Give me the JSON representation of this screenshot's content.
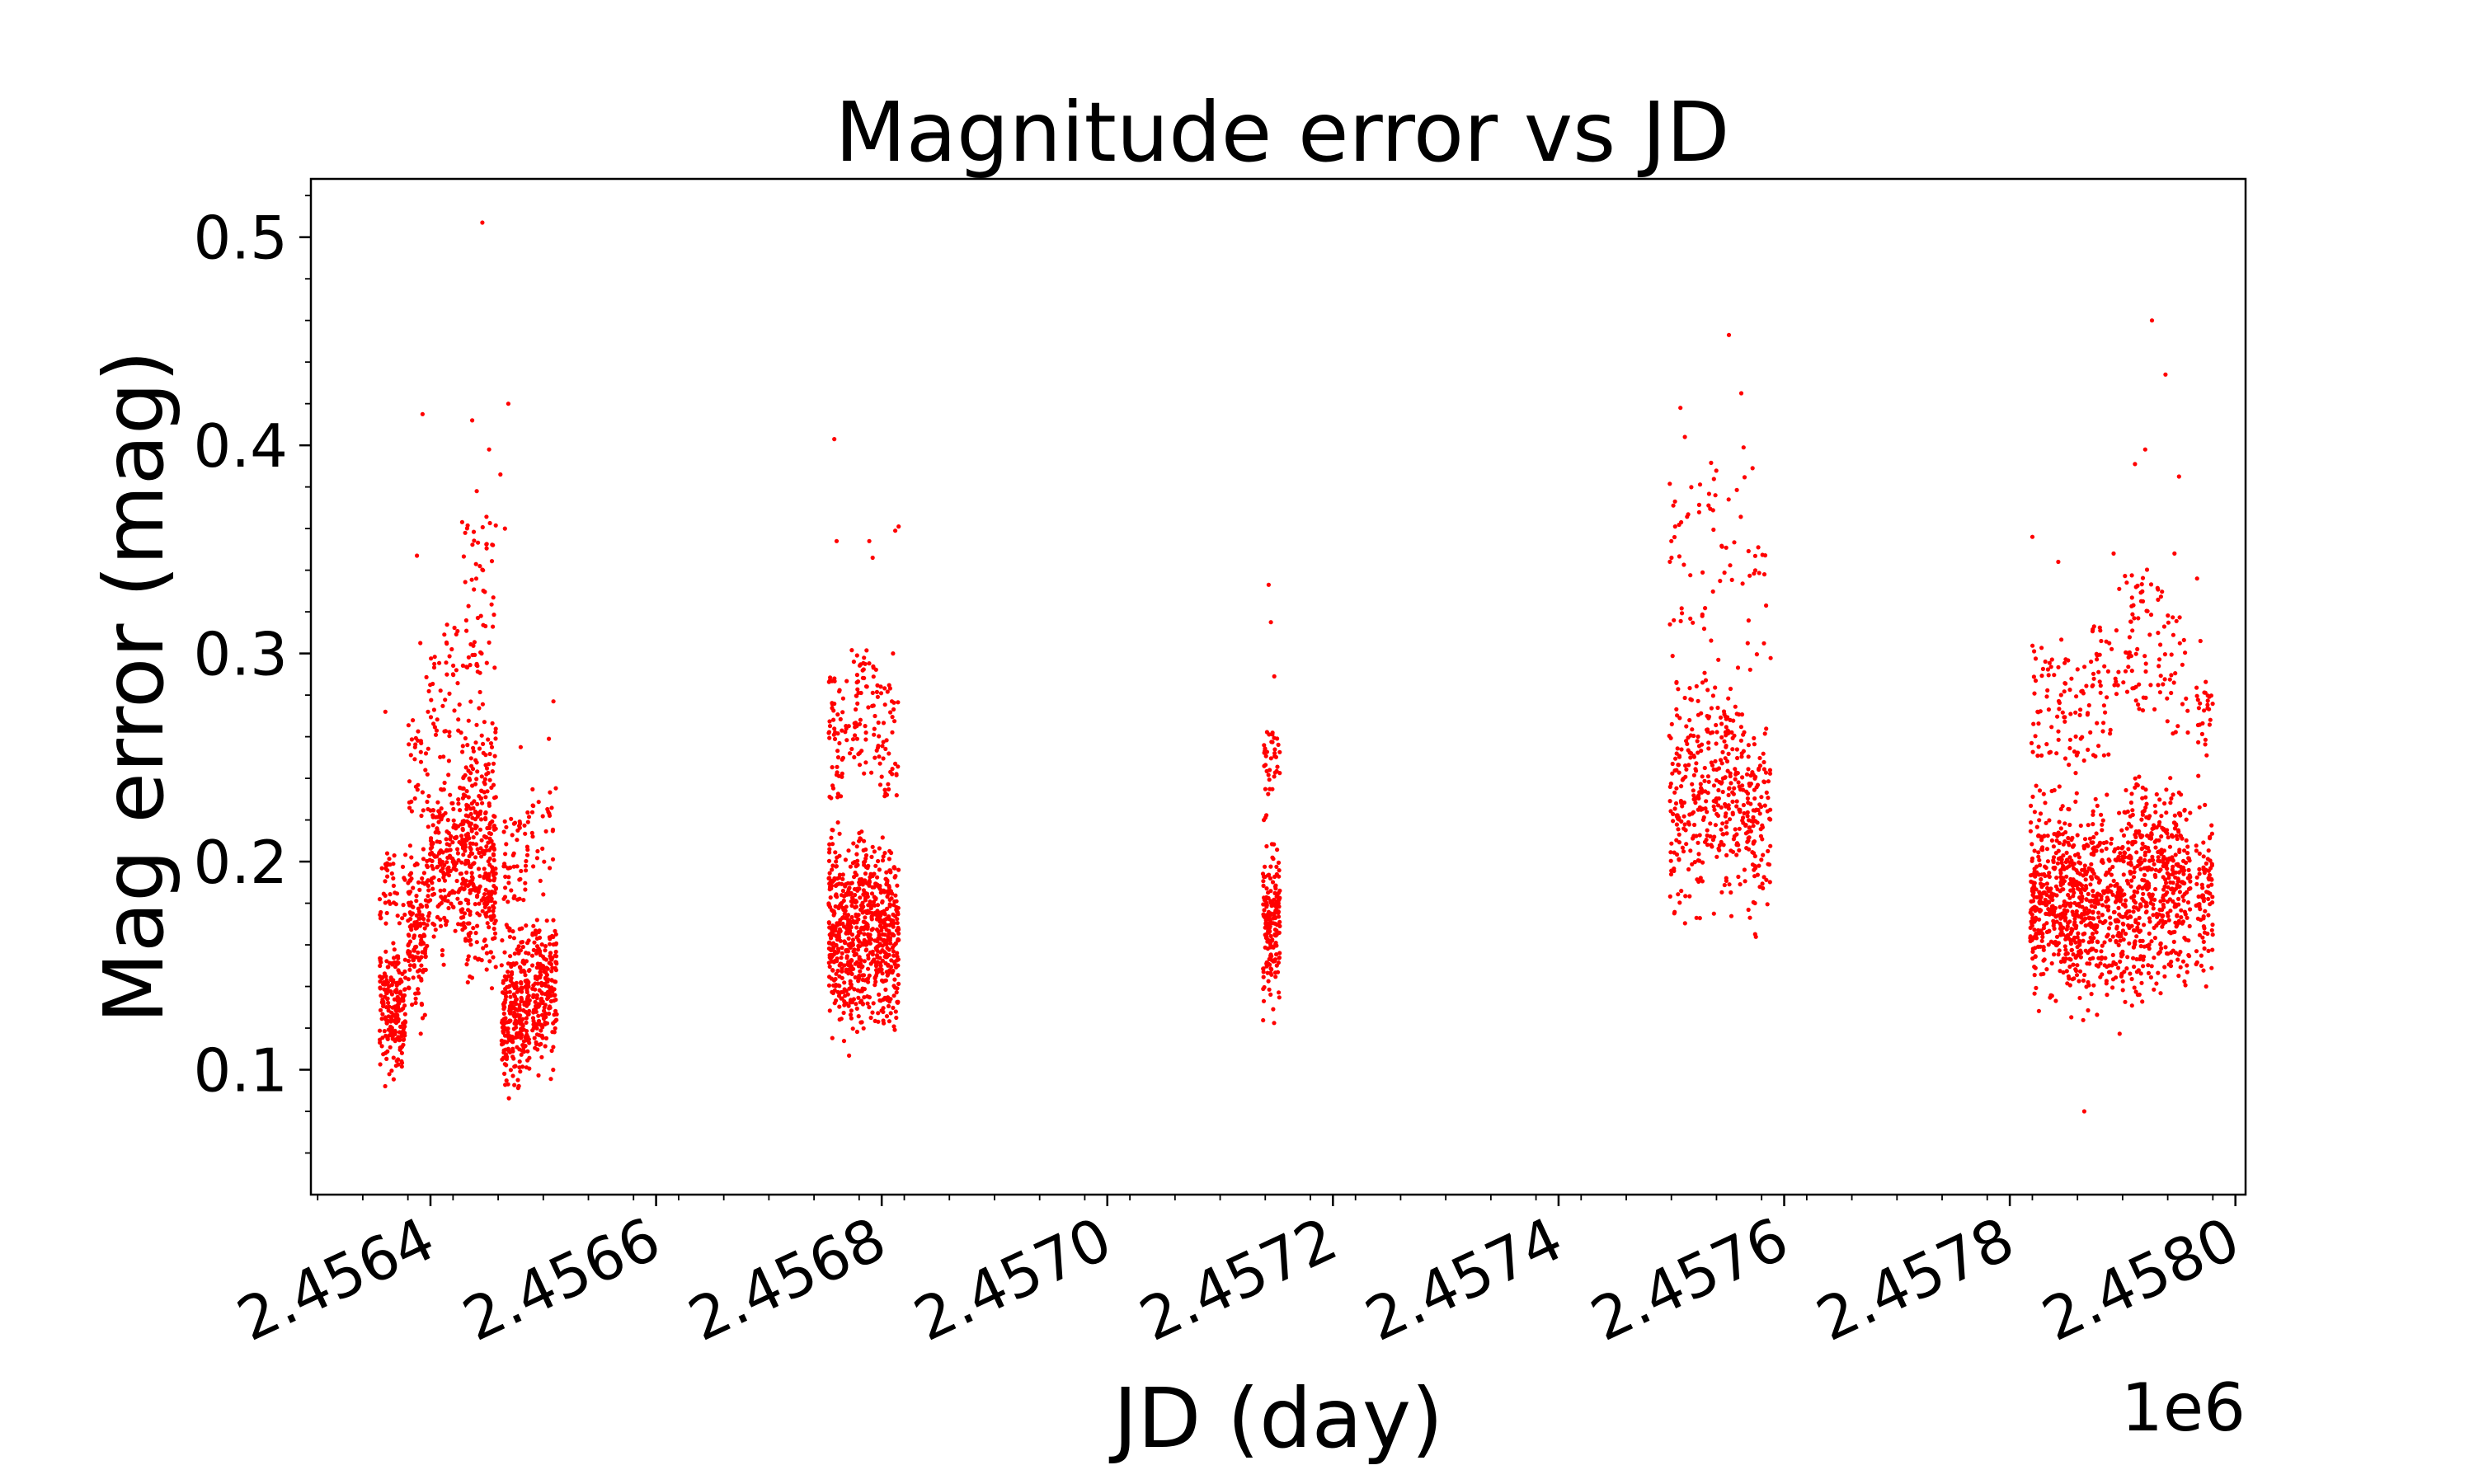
{
  "chart_data": {
    "type": "scatter",
    "title": "Magnitude error vs JD",
    "xlabel": "JD (day)",
    "ylabel": "Mag error (mag)",
    "x_offset_label": "1e6",
    "x_scale": 1000000,
    "xlim": [
      2456294,
      2458009
    ],
    "ylim": [
      0.04,
      0.528
    ],
    "x_ticks": [
      2456400,
      2456600,
      2456800,
      2457000,
      2457200,
      2457400,
      2457600,
      2457800,
      2458000
    ],
    "x_tick_labels": [
      "2.4564",
      "2.4566",
      "2.4568",
      "2.4570",
      "2.4572",
      "2.4574",
      "2.4576",
      "2.4578",
      "2.4580"
    ],
    "y_ticks": [
      0.1,
      0.2,
      0.3,
      0.4,
      0.5
    ],
    "y_tick_labels": [
      "0.1",
      "0.2",
      "0.3",
      "0.4",
      "0.5"
    ],
    "grid": false,
    "marker_color": "#ff0000",
    "series": [
      {
        "clusters": [
          {
            "x_range": [
              2456355,
              2456378
            ],
            "y_min": 0.07,
            "y_typical": [
              0.09,
              0.17
            ],
            "n": 260
          },
          {
            "x_range": [
              2456380,
              2456396
            ],
            "y_min": 0.08,
            "y_typical": [
              0.11,
              0.22
            ],
            "n": 170
          },
          {
            "x_range": [
              2456396,
              2456412
            ],
            "y_min": 0.12,
            "y_typical": [
              0.14,
              0.25
            ],
            "n": 130
          },
          {
            "x_range": [
              2456412,
              2456428
            ],
            "y_min": 0.1,
            "y_typical": [
              0.14,
              0.26
            ],
            "n": 130
          },
          {
            "x_range": [
              2456428,
              2456458
            ],
            "y_min": 0.095,
            "y_typical": [
              0.12,
              0.29
            ],
            "n": 420
          },
          {
            "x_range": [
              2456463,
              2456488
            ],
            "y_min": 0.065,
            "y_typical": [
              0.08,
              0.18
            ],
            "n": 340
          },
          {
            "x_range": [
              2456490,
              2456512
            ],
            "y_min": 0.07,
            "y_typical": [
              0.085,
              0.19
            ],
            "n": 230
          },
          {
            "x_range": [
              2456753,
              2456773
            ],
            "y_min": 0.08,
            "y_typical": [
              0.1,
              0.23
            ],
            "n": 320
          },
          {
            "x_range": [
              2456773,
              2456795
            ],
            "y_min": 0.08,
            "y_typical": [
              0.1,
              0.24
            ],
            "n": 320
          },
          {
            "x_range": [
              2456795,
              2456815
            ],
            "y_min": 0.08,
            "y_typical": [
              0.1,
              0.23
            ],
            "n": 300
          },
          {
            "x_range": [
              2457138,
              2457153
            ],
            "y_min": 0.1,
            "y_typical": [
              0.12,
              0.22
            ],
            "n": 220
          },
          {
            "x_range": [
              2457498,
              2457530
            ],
            "y_min": 0.13,
            "y_typical": [
              0.15,
              0.31
            ],
            "n": 200
          },
          {
            "x_range": [
              2457530,
              2457565
            ],
            "y_min": 0.14,
            "y_typical": [
              0.16,
              0.32
            ],
            "n": 210
          },
          {
            "x_range": [
              2457565,
              2457588
            ],
            "y_min": 0.13,
            "y_typical": [
              0.15,
              0.29
            ],
            "n": 130
          },
          {
            "x_range": [
              2457818,
              2457848
            ],
            "y_min": 0.095,
            "y_typical": [
              0.12,
              0.25
            ],
            "n": 330
          },
          {
            "x_range": [
              2457848,
              2457873
            ],
            "y_min": 0.08,
            "y_typical": [
              0.11,
              0.24
            ],
            "n": 280
          },
          {
            "x_range": [
              2457873,
              2457900
            ],
            "y_min": 0.09,
            "y_typical": [
              0.11,
              0.25
            ],
            "n": 250
          },
          {
            "x_range": [
              2457900,
              2457935
            ],
            "y_min": 0.085,
            "y_typical": [
              0.11,
              0.27
            ],
            "n": 360
          },
          {
            "x_range": [
              2457935,
              2457960
            ],
            "y_min": 0.09,
            "y_typical": [
              0.12,
              0.26
            ],
            "n": 230
          },
          {
            "x_range": [
              2457965,
              2457980
            ],
            "y_min": 0.12,
            "y_typical": [
              0.13,
              0.24
            ],
            "n": 110
          }
        ],
        "outliers": [
          [
            2456360,
            0.272
          ],
          [
            2456388,
            0.347
          ],
          [
            2456393,
            0.415
          ],
          [
            2456391,
            0.305
          ],
          [
            2456420,
            0.29
          ],
          [
            2456437,
            0.412
          ],
          [
            2456441,
            0.378
          ],
          [
            2456446,
            0.507
          ],
          [
            2456452,
            0.398
          ],
          [
            2456462,
            0.386
          ],
          [
            2456469,
            0.42
          ],
          [
            2456466,
            0.36
          ],
          [
            2456480,
            0.255
          ],
          [
            2456505,
            0.259
          ],
          [
            2456509,
            0.277
          ],
          [
            2456758,
            0.403
          ],
          [
            2456760,
            0.354
          ],
          [
            2456792,
            0.346
          ],
          [
            2456789,
            0.354
          ],
          [
            2456815,
            0.361
          ],
          [
            2456812,
            0.359
          ],
          [
            2456810,
            0.3
          ],
          [
            2457143,
            0.333
          ],
          [
            2457145,
            0.315
          ],
          [
            2457148,
            0.289
          ],
          [
            2457500,
            0.354
          ],
          [
            2457508,
            0.418
          ],
          [
            2457512,
            0.404
          ],
          [
            2457539,
            0.376
          ],
          [
            2457551,
            0.453
          ],
          [
            2457562,
            0.425
          ],
          [
            2457564,
            0.399
          ],
          [
            2457572,
            0.389
          ],
          [
            2457577,
            0.351
          ],
          [
            2457584,
            0.323
          ],
          [
            2457820,
            0.356
          ],
          [
            2457843,
            0.344
          ],
          [
            2457866,
            0.08
          ],
          [
            2457881,
            0.306
          ],
          [
            2457892,
            0.348
          ],
          [
            2457897,
            0.331
          ],
          [
            2457911,
            0.391
          ],
          [
            2457920,
            0.398
          ],
          [
            2457926,
            0.46
          ],
          [
            2457938,
            0.434
          ],
          [
            2457946,
            0.348
          ],
          [
            2457950,
            0.385
          ],
          [
            2457966,
            0.336
          ],
          [
            2457969,
            0.306
          ]
        ]
      }
    ]
  }
}
